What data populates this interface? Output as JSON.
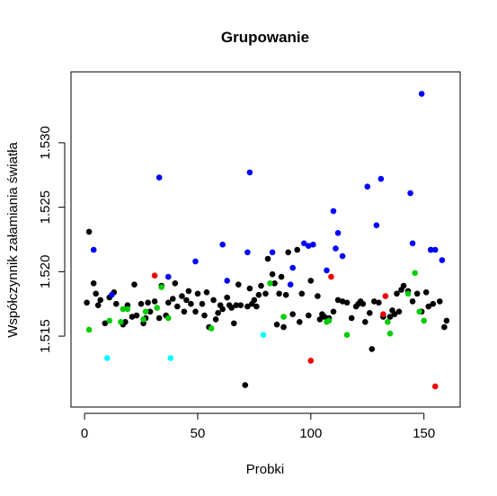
{
  "chart_data": {
    "type": "scatter",
    "title": "Grupowanie",
    "xlabel": "Probki",
    "ylabel": "Współczynnik załamiania światła",
    "xlim": [
      -6,
      166
    ],
    "ylim": [
      1.5095,
      1.5355
    ],
    "xticks": [
      0,
      50,
      100,
      150
    ],
    "yticks": [
      1.515,
      1.52,
      1.525,
      1.53
    ],
    "ytick_labels": [
      "1.515",
      "1.520",
      "1.525",
      "1.530"
    ],
    "grid": false,
    "legend": "none",
    "colors": {
      "black": "#000000",
      "blue": "#0000ff",
      "red": "#ee0000",
      "green": "#00cc00",
      "cyan": "#00ffff"
    },
    "series": [
      {
        "color": "#000000",
        "points": [
          [
            1,
            1.5176
          ],
          [
            2,
            1.5231
          ],
          [
            4,
            1.5191
          ],
          [
            5,
            1.5183
          ],
          [
            6,
            1.5174
          ],
          [
            7,
            1.5178
          ],
          [
            9,
            1.516
          ],
          [
            11,
            1.518
          ],
          [
            13,
            1.5184
          ],
          [
            14,
            1.5175
          ],
          [
            17,
            1.5159
          ],
          [
            18,
            1.5161
          ],
          [
            19,
            1.5174
          ],
          [
            21,
            1.5165
          ],
          [
            22,
            1.519
          ],
          [
            23,
            1.5166
          ],
          [
            25,
            1.5175
          ],
          [
            26,
            1.516
          ],
          [
            27,
            1.5164
          ],
          [
            28,
            1.5176
          ],
          [
            29,
            1.5169
          ],
          [
            31,
            1.5177
          ],
          [
            33,
            1.5164
          ],
          [
            34,
            1.5189
          ],
          [
            36,
            1.5166
          ],
          [
            37,
            1.5176
          ],
          [
            39,
            1.5179
          ],
          [
            40,
            1.5191
          ],
          [
            41,
            1.5173
          ],
          [
            43,
            1.5181
          ],
          [
            44,
            1.5169
          ],
          [
            45,
            1.5178
          ],
          [
            46,
            1.5185
          ],
          [
            47,
            1.5175
          ],
          [
            49,
            1.5169
          ],
          [
            50,
            1.5183
          ],
          [
            52,
            1.5175
          ],
          [
            53,
            1.5166
          ],
          [
            54,
            1.5184
          ],
          [
            55,
            1.5157
          ],
          [
            57,
            1.5178
          ],
          [
            58,
            1.5163
          ],
          [
            59,
            1.5168
          ],
          [
            60,
            1.5174
          ],
          [
            61,
            1.5171
          ],
          [
            63,
            1.518
          ],
          [
            64,
            1.5174
          ],
          [
            65,
            1.5172
          ],
          [
            66,
            1.516
          ],
          [
            67,
            1.5174
          ],
          [
            68,
            1.519
          ],
          [
            69,
            1.5174
          ],
          [
            71,
            1.5112
          ],
          [
            72,
            1.5173
          ],
          [
            73,
            1.5187
          ],
          [
            74,
            1.5175
          ],
          [
            75,
            1.5178
          ],
          [
            76,
            1.5173
          ],
          [
            77,
            1.5182
          ],
          [
            78,
            1.5189
          ],
          [
            80,
            1.5183
          ],
          [
            81,
            1.521
          ],
          [
            83,
            1.5198
          ],
          [
            84,
            1.5191
          ],
          [
            85,
            1.5159
          ],
          [
            86,
            1.5183
          ],
          [
            87,
            1.5196
          ],
          [
            88,
            1.5157
          ],
          [
            89,
            1.5182
          ],
          [
            90,
            1.5215
          ],
          [
            92,
            1.5167
          ],
          [
            94,
            1.5217
          ],
          [
            95,
            1.5161
          ],
          [
            96,
            1.5183
          ],
          [
            99,
            1.5166
          ],
          [
            100,
            1.5193
          ],
          [
            103,
            1.5181
          ],
          [
            104,
            1.5163
          ],
          [
            105,
            1.5167
          ],
          [
            106,
            1.5165
          ],
          [
            108,
            1.5164
          ],
          [
            110,
            1.5169
          ],
          [
            112,
            1.5178
          ],
          [
            114,
            1.5177
          ],
          [
            116,
            1.5176
          ],
          [
            118,
            1.5164
          ],
          [
            120,
            1.5173
          ],
          [
            121,
            1.5175
          ],
          [
            122,
            1.5177
          ],
          [
            123,
            1.5175
          ],
          [
            124,
            1.5161
          ],
          [
            126,
            1.5168
          ],
          [
            127,
            1.514
          ],
          [
            128,
            1.5177
          ],
          [
            130,
            1.5176
          ],
          [
            132,
            1.5165
          ],
          [
            135,
            1.5165
          ],
          [
            136,
            1.517
          ],
          [
            137,
            1.5167
          ],
          [
            138,
            1.5183
          ],
          [
            139,
            1.5169
          ],
          [
            140,
            1.5186
          ],
          [
            141,
            1.5189
          ],
          [
            143,
            1.5185
          ],
          [
            145,
            1.5177
          ],
          [
            147,
            1.5183
          ],
          [
            149,
            1.5169
          ],
          [
            151,
            1.5184
          ],
          [
            152,
            1.5173
          ],
          [
            153,
            1.5217
          ],
          [
            154,
            1.5175
          ],
          [
            157,
            1.5177
          ],
          [
            159,
            1.5157
          ],
          [
            160,
            1.5162
          ]
        ]
      },
      {
        "color": "#0000ff",
        "points": [
          [
            4,
            1.5217
          ],
          [
            12,
            1.5182
          ],
          [
            33,
            1.5273
          ],
          [
            37,
            1.5196
          ],
          [
            49,
            1.5208
          ],
          [
            61,
            1.5221
          ],
          [
            63,
            1.5193
          ],
          [
            72,
            1.5215
          ],
          [
            73,
            1.5277
          ],
          [
            83,
            1.5215
          ],
          [
            91,
            1.519
          ],
          [
            92,
            1.5203
          ],
          [
            97,
            1.5222
          ],
          [
            99,
            1.522
          ],
          [
            101,
            1.5221
          ],
          [
            107,
            1.5201
          ],
          [
            110,
            1.5247
          ],
          [
            111,
            1.5218
          ],
          [
            112,
            1.523
          ],
          [
            114,
            1.5212
          ],
          [
            125,
            1.5266
          ],
          [
            129,
            1.5236
          ],
          [
            131,
            1.5272
          ],
          [
            144,
            1.5261
          ],
          [
            145,
            1.5222
          ],
          [
            149,
            1.5338
          ],
          [
            153,
            1.5217
          ],
          [
            155,
            1.5217
          ],
          [
            158,
            1.5209
          ]
        ]
      },
      {
        "color": "#ee0000",
        "points": [
          [
            31,
            1.5197
          ],
          [
            100,
            1.5131
          ],
          [
            109,
            1.5196
          ],
          [
            132,
            1.5167
          ],
          [
            133,
            1.5181
          ],
          [
            155,
            1.5111
          ]
        ]
      },
      {
        "color": "#00cc00",
        "points": [
          [
            2,
            1.5155
          ],
          [
            11,
            1.5162
          ],
          [
            16,
            1.5161
          ],
          [
            17,
            1.5171
          ],
          [
            19,
            1.5171
          ],
          [
            26,
            1.5163
          ],
          [
            27,
            1.5169
          ],
          [
            32,
            1.5172
          ],
          [
            34,
            1.5188
          ],
          [
            37,
            1.5164
          ],
          [
            56,
            1.5156
          ],
          [
            82,
            1.5191
          ],
          [
            88,
            1.5165
          ],
          [
            107,
            1.5161
          ],
          [
            108,
            1.5162
          ],
          [
            116,
            1.5151
          ],
          [
            134,
            1.5161
          ],
          [
            135,
            1.5152
          ],
          [
            143,
            1.5183
          ],
          [
            146,
            1.5199
          ],
          [
            148,
            1.5169
          ],
          [
            150,
            1.5162
          ]
        ]
      },
      {
        "color": "#00ffff",
        "points": [
          [
            10,
            1.5133
          ],
          [
            38,
            1.5133
          ],
          [
            79,
            1.5151
          ]
        ]
      }
    ]
  }
}
